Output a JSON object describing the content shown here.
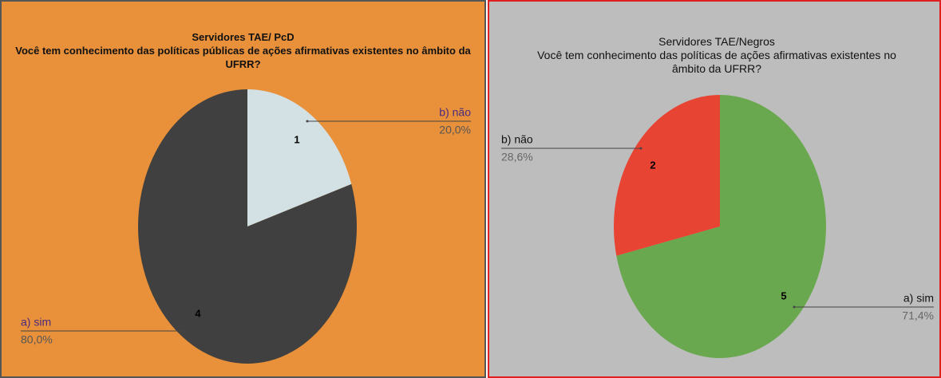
{
  "chart_data": [
    {
      "type": "pie",
      "title": "Servidores TAE/ PcD",
      "subtitle": "Você tem conhecimento das políticas públicas de ações afirmativas existentes no âmbito da UFRR?",
      "categories": [
        "b) não",
        "a) sim"
      ],
      "values": [
        1,
        4
      ],
      "percent_labels": [
        "20,0%",
        "80,0%"
      ],
      "colors": [
        "#d3e0e4",
        "#404040"
      ]
    },
    {
      "type": "pie",
      "title": "Servidores TAE/Negros",
      "subtitle": "Você tem conhecimento das políticas de ações afirmativas existentes no âmbito da UFRR?",
      "categories": [
        "a) sim",
        "b) não"
      ],
      "values": [
        5,
        2
      ],
      "percent_labels": [
        "71,4%",
        "28,6%"
      ],
      "colors": [
        "#6aa84f",
        "#e84434"
      ]
    }
  ]
}
